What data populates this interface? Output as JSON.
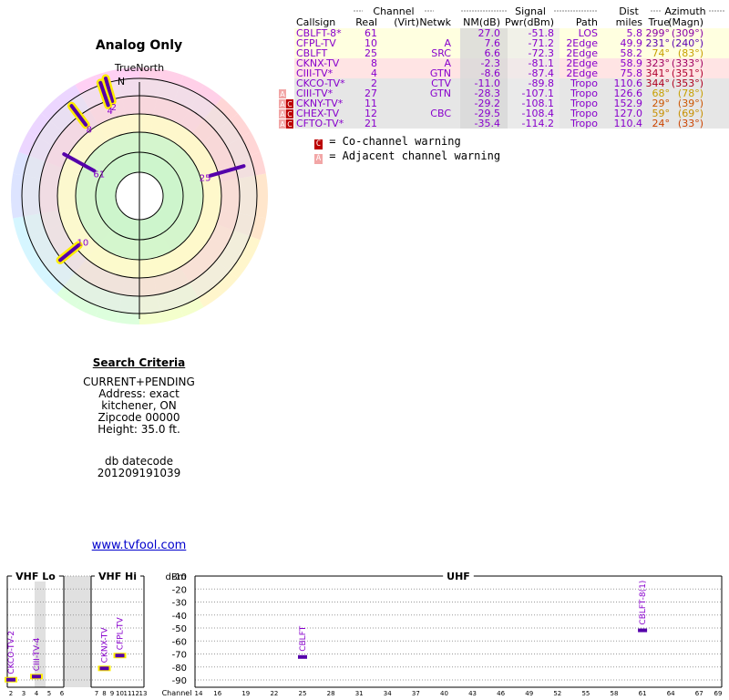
{
  "page": {
    "title": "Analog Only",
    "radar_label": "TrueNorth",
    "north_label": "N",
    "site_link": "www.tvfool.com"
  },
  "search_criteria": {
    "title": "Search Criteria",
    "lines": [
      "CURRENT+PENDING",
      "Address: exact",
      "kitchener, ON",
      "Zipcode 00000",
      "Height: 35.0 ft."
    ],
    "db_label": "db datecode",
    "db_value": "201209191039"
  },
  "table": {
    "group_headers": [
      "Channel",
      "Signal",
      "Dist",
      "Azimuth"
    ],
    "columns": [
      "Callsign",
      "Real",
      "(Virt)",
      "Netwk",
      "NM(dB)",
      "Pwr(dBm)",
      "Path",
      "miles",
      "True",
      "(Magn)"
    ],
    "rows": [
      {
        "callsign": "CBLFT-8*",
        "real": "61",
        "virt": "",
        "netwk": "",
        "nm": "27.0",
        "pwr": "-51.8",
        "path": "LOS",
        "miles": "5.8",
        "az_true": "299°",
        "az_magn": "(309°)",
        "warn": "",
        "bg": "#ffffe0",
        "az_color": "#8a00a8"
      },
      {
        "callsign": "CFPL-TV",
        "real": "10",
        "virt": "",
        "netwk": "A",
        "nm": "7.6",
        "pwr": "-71.2",
        "path": "2Edge",
        "miles": "49.9",
        "az_true": "231°",
        "az_magn": "(240°)",
        "warn": "",
        "bg": "#ffffe0",
        "az_color": "#5a00b0"
      },
      {
        "callsign": "CBLFT",
        "real": "25",
        "virt": "",
        "netwk": "SRC",
        "nm": "6.6",
        "pwr": "-72.3",
        "path": "2Edge",
        "miles": "58.2",
        "az_true": "74°",
        "az_magn": "(83°)",
        "warn": "",
        "bg": "#ffffe0",
        "az_color": "#c8a000"
      },
      {
        "callsign": "CKNX-TV",
        "real": "8",
        "virt": "",
        "netwk": "A",
        "nm": "-2.3",
        "pwr": "-81.1",
        "path": "2Edge",
        "miles": "58.9",
        "az_true": "323°",
        "az_magn": "(333°)",
        "warn": "",
        "bg": "#ffe4e4",
        "az_color": "#a00060"
      },
      {
        "callsign": "CIII-TV*",
        "real": "4",
        "virt": "",
        "netwk": "GTN",
        "nm": "-8.6",
        "pwr": "-87.4",
        "path": "2Edge",
        "miles": "75.8",
        "az_true": "341°",
        "az_magn": "(351°)",
        "warn": "",
        "bg": "#ffe4e4",
        "az_color": "#b00030"
      },
      {
        "callsign": "CKCO-TV*",
        "real": "2",
        "virt": "",
        "netwk": "CTV",
        "nm": "-11.0",
        "pwr": "-89.8",
        "path": "Tropo",
        "miles": "110.6",
        "az_true": "344°",
        "az_magn": "(353°)",
        "warn": "",
        "bg": "#e6e6e6",
        "az_color": "#b00020"
      },
      {
        "callsign": "CIII-TV*",
        "real": "27",
        "virt": "",
        "netwk": "GTN",
        "nm": "-28.3",
        "pwr": "-107.1",
        "path": "Tropo",
        "miles": "126.6",
        "az_true": "68°",
        "az_magn": "(78°)",
        "warn": "A",
        "bg": "#e6e6e6",
        "az_color": "#c8a000"
      },
      {
        "callsign": "CKNY-TV*",
        "real": "11",
        "virt": "",
        "netwk": "",
        "nm": "-29.2",
        "pwr": "-108.1",
        "path": "Tropo",
        "miles": "152.9",
        "az_true": "29°",
        "az_magn": "(39°)",
        "warn": "AC",
        "bg": "#e6e6e6",
        "az_color": "#cc5500"
      },
      {
        "callsign": "CHEX-TV",
        "real": "12",
        "virt": "",
        "netwk": "CBC",
        "nm": "-29.5",
        "pwr": "-108.4",
        "path": "Tropo",
        "miles": "127.0",
        "az_true": "59°",
        "az_magn": "(69°)",
        "warn": "AC",
        "bg": "#e6e6e6",
        "az_color": "#c89000"
      },
      {
        "callsign": "CFTO-TV*",
        "real": "21",
        "virt": "",
        "netwk": "",
        "nm": "-35.4",
        "pwr": "-114.2",
        "path": "Tropo",
        "miles": "110.4",
        "az_true": "24°",
        "az_magn": "(33°)",
        "warn": "AC",
        "bg": "#e6e6e6",
        "az_color": "#cc4400"
      }
    ],
    "legend": {
      "co_channel_symbol": "C",
      "co_channel_text": "= Co-channel warning",
      "adjacent_symbol": "A",
      "adjacent_text": "= Adjacent channel warning"
    }
  },
  "colors": {
    "text_purple": "#8800cc",
    "bar_purple": "#5500aa",
    "highlight_yellow": "#ffee00",
    "co_channel_red": "#bb0000",
    "adjacent_pink": "#f2a6a6"
  },
  "chart_data": [
    {
      "type": "polar",
      "title": "Analog Only",
      "orientation_label": "TrueNorth",
      "stations": [
        {
          "channel": "2",
          "azimuth_deg": 344,
          "nm_db": -11.0,
          "highlight": true
        },
        {
          "channel": "4",
          "azimuth_deg": 341,
          "nm_db": -8.6,
          "highlight": true
        },
        {
          "channel": "8",
          "azimuth_deg": 323,
          "nm_db": -2.3,
          "highlight": true
        },
        {
          "channel": "61",
          "azimuth_deg": 299,
          "nm_db": 27.0,
          "highlight": false
        },
        {
          "channel": "25",
          "azimuth_deg": 74,
          "nm_db": 6.6,
          "highlight": false
        },
        {
          "channel": "10",
          "azimuth_deg": 231,
          "nm_db": 7.6,
          "highlight": true
        }
      ]
    },
    {
      "type": "bar",
      "title": "",
      "ylabel": "dBm",
      "xlabel": "Channel",
      "ylim": [
        -90,
        -10
      ],
      "yticks": [
        "-10",
        "-20",
        "-30",
        "-40",
        "-50",
        "-60",
        "-70",
        "-80",
        "-90"
      ],
      "sections": [
        "VHF Lo",
        "VHF Hi",
        "UHF"
      ],
      "vhf_lo_ticks": [
        "2",
        "3",
        "4",
        "5",
        "6"
      ],
      "vhf_hi_ticks": [
        "7",
        "8",
        "9",
        "10",
        "11",
        "12",
        "13"
      ],
      "uhf_ticks": [
        "14",
        "16",
        "19",
        "22",
        "25",
        "28",
        "31",
        "34",
        "37",
        "40",
        "43",
        "46",
        "49",
        "52",
        "55",
        "58",
        "61",
        "64",
        "67",
        "69"
      ],
      "stations": [
        {
          "label": "CKCO-TV-2",
          "channel": 2,
          "pwr_dbm": -89.8,
          "highlight": true
        },
        {
          "label": "CIII-TV-4",
          "channel": 4,
          "pwr_dbm": -87.4,
          "highlight": true
        },
        {
          "label": "CKNX-TV",
          "channel": 8,
          "pwr_dbm": -81.1,
          "highlight": true
        },
        {
          "label": "CFPL-TV",
          "channel": 10,
          "pwr_dbm": -71.2,
          "highlight": true
        },
        {
          "label": "CBLFT",
          "channel": 25,
          "pwr_dbm": -72.3,
          "highlight": false
        },
        {
          "label": "CBLFT-8(1)",
          "channel": 61,
          "pwr_dbm": -51.8,
          "highlight": false
        }
      ]
    }
  ]
}
